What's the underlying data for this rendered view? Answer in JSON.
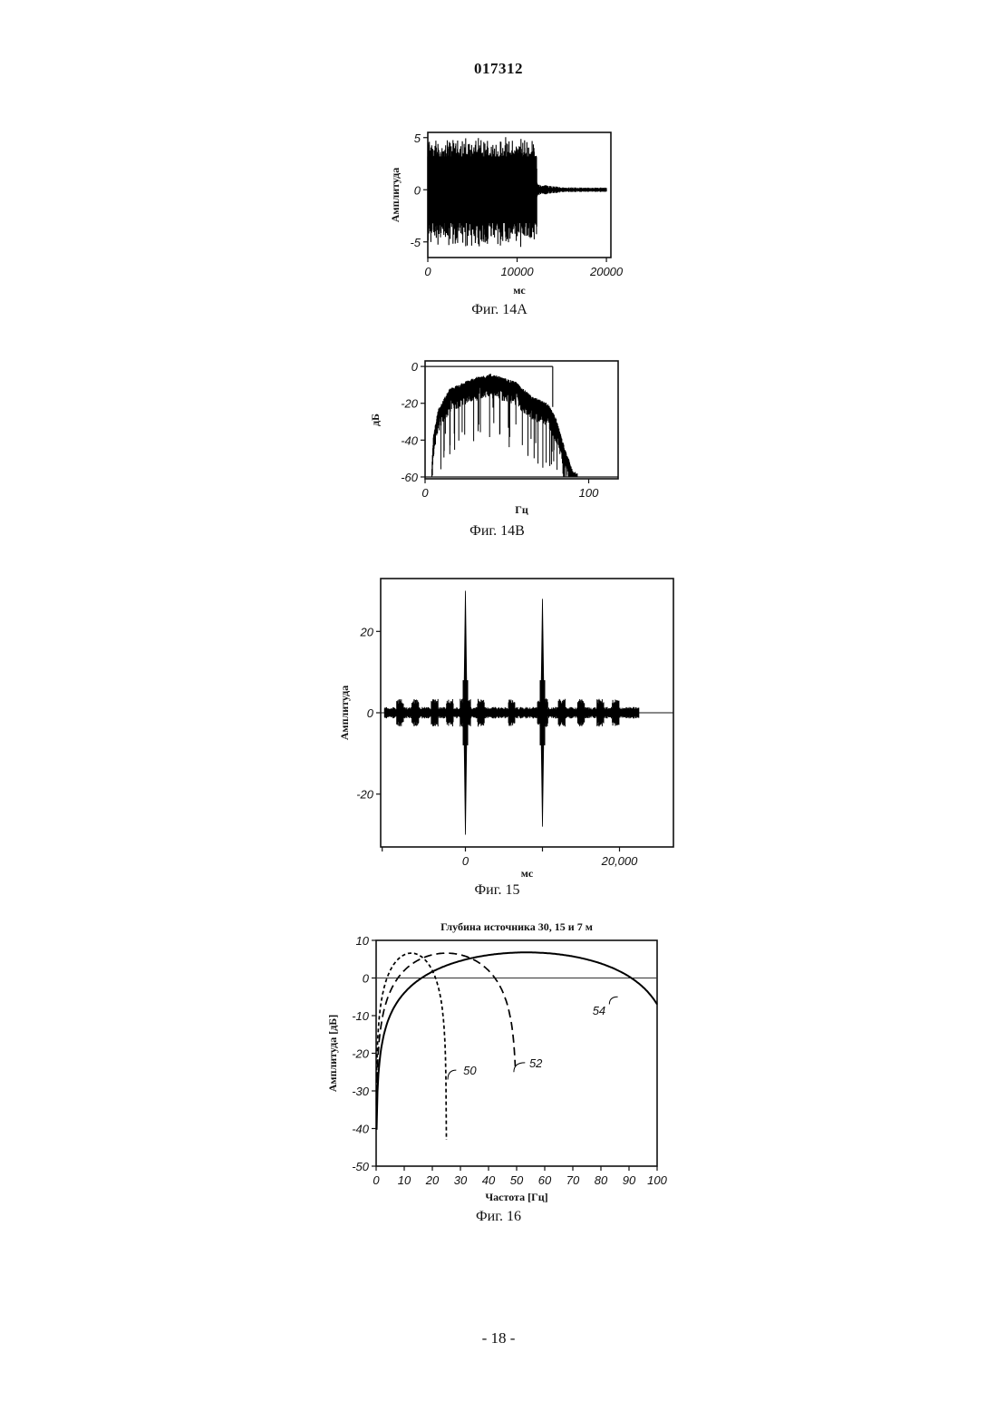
{
  "page": {
    "doc_number": "017312",
    "footer": "- 18 -"
  },
  "chart_data": [
    {
      "id": "fig14a",
      "type": "line",
      "caption": "Фиг. 14A",
      "xlabel": "мс",
      "ylabel": "Амплитуда",
      "xlim": [
        0,
        20500
      ],
      "ylim": [
        -6.5,
        5.5
      ],
      "xticks": [
        {
          "v": 0,
          "label": "0"
        },
        {
          "v": 10000,
          "label": "10000"
        },
        {
          "v": 20000,
          "label": "20000"
        }
      ],
      "yticks": [
        {
          "v": 5,
          "label": "5"
        },
        {
          "v": 0,
          "label": "0"
        },
        {
          "v": -5,
          "label": "-5"
        }
      ],
      "signal": {
        "burst_end": 12200,
        "burst_amplitude": 5.2,
        "tail_amplitude": 0.35
      }
    },
    {
      "id": "fig14b",
      "type": "line",
      "caption": "Фиг. 14B",
      "xlabel": "Гц",
      "ylabel": "дБ",
      "xlim": [
        0,
        118
      ],
      "ylim": [
        -61,
        3
      ],
      "xticks": [
        {
          "v": 0,
          "label": "0"
        },
        {
          "v": 100,
          "label": "100"
        }
      ],
      "yticks": [
        {
          "v": 0,
          "label": "0"
        },
        {
          "v": -20,
          "label": "-20"
        },
        {
          "v": -40,
          "label": "-40"
        },
        {
          "v": -60,
          "label": "-60"
        }
      ],
      "envelope": [
        [
          0,
          -60
        ],
        [
          4,
          -60
        ],
        [
          5,
          -40
        ],
        [
          8,
          -25
        ],
        [
          15,
          -14
        ],
        [
          30,
          -8
        ],
        [
          40,
          -6
        ],
        [
          55,
          -10
        ],
        [
          65,
          -18
        ],
        [
          75,
          -22
        ],
        [
          80,
          -30
        ],
        [
          85,
          -45
        ],
        [
          90,
          -58
        ],
        [
          93,
          -60
        ],
        [
          118,
          -60
        ]
      ],
      "line_at_zero": [
        0,
        78
      ],
      "spike": {
        "x": 78,
        "from": -22,
        "to": 0
      }
    },
    {
      "id": "fig15",
      "type": "line",
      "caption": "Фиг. 15",
      "xlabel": "мс",
      "ylabel": "Амплитуда",
      "xlim": [
        -11000,
        27000
      ],
      "ylim": [
        -33,
        33
      ],
      "xticks": [
        {
          "v": 0,
          "label": "0"
        },
        {
          "v": 20000,
          "label": "20,000"
        }
      ],
      "yticks": [
        {
          "v": 20,
          "label": "20"
        },
        {
          "v": 0,
          "label": "0"
        },
        {
          "v": -20,
          "label": "-20"
        }
      ],
      "spikes": [
        {
          "x": 0,
          "top": 30,
          "bottom": -30
        },
        {
          "x": 10000,
          "top": 28,
          "bottom": -28
        }
      ],
      "noise_range": [
        -10500,
        22500
      ],
      "burst_centers": [
        -8500,
        -6500,
        -4000,
        -2000,
        2000,
        6000,
        12500,
        15000,
        17500,
        19500
      ]
    },
    {
      "id": "fig16",
      "type": "line",
      "title": "Глубина источника 30, 15 и 7 м",
      "caption": "Фиг. 16",
      "xlabel": "Частота [Гц]",
      "ylabel": "Амплитуда [дБ]",
      "xlim": [
        0,
        100
      ],
      "ylim": [
        -50,
        10
      ],
      "xticks": [
        {
          "v": 0,
          "label": "0"
        },
        {
          "v": 10,
          "label": "10"
        },
        {
          "v": 20,
          "label": "20"
        },
        {
          "v": 30,
          "label": "30"
        },
        {
          "v": 40,
          "label": "40"
        },
        {
          "v": 50,
          "label": "50"
        },
        {
          "v": 60,
          "label": "60"
        },
        {
          "v": 70,
          "label": "70"
        },
        {
          "v": 80,
          "label": "80"
        },
        {
          "v": 90,
          "label": "90"
        },
        {
          "v": 100,
          "label": "100"
        }
      ],
      "yticks": [
        {
          "v": 10,
          "label": "10"
        },
        {
          "v": 0,
          "label": "0"
        },
        {
          "v": -10,
          "label": "-10"
        },
        {
          "v": -20,
          "label": "-20"
        },
        {
          "v": -30,
          "label": "-30"
        },
        {
          "v": -40,
          "label": "-40"
        },
        {
          "v": -50,
          "label": "-50"
        }
      ],
      "reference_line_y": 0,
      "series": [
        {
          "label": "50",
          "style": "short-dash",
          "notch_hz": 25,
          "peak_db": 6.6,
          "x_max": 25,
          "y_floor": -43,
          "label_at": [
            31,
            -24.5
          ],
          "leader": [
            [
              25.5,
              -27
            ],
            [
              28.5,
              -24.5
            ]
          ]
        },
        {
          "label": "52",
          "style": "long-dash",
          "notch_hz": 50,
          "peak_db": 6.6,
          "x_max": 49.5,
          "y_floor": -50,
          "label_at": [
            54.5,
            -22.5
          ],
          "leader": [
            [
              49,
              -25
            ],
            [
              53,
              -22.5
            ]
          ]
        },
        {
          "label": "54",
          "style": "solid",
          "notch_hz": 107,
          "peak_db": 6.8,
          "x_max": 100,
          "y_floor": -50,
          "label_at": [
            77,
            -8.5
          ],
          "leader": [
            [
              83,
              -7
            ],
            [
              86,
              -5
            ]
          ]
        }
      ]
    }
  ]
}
